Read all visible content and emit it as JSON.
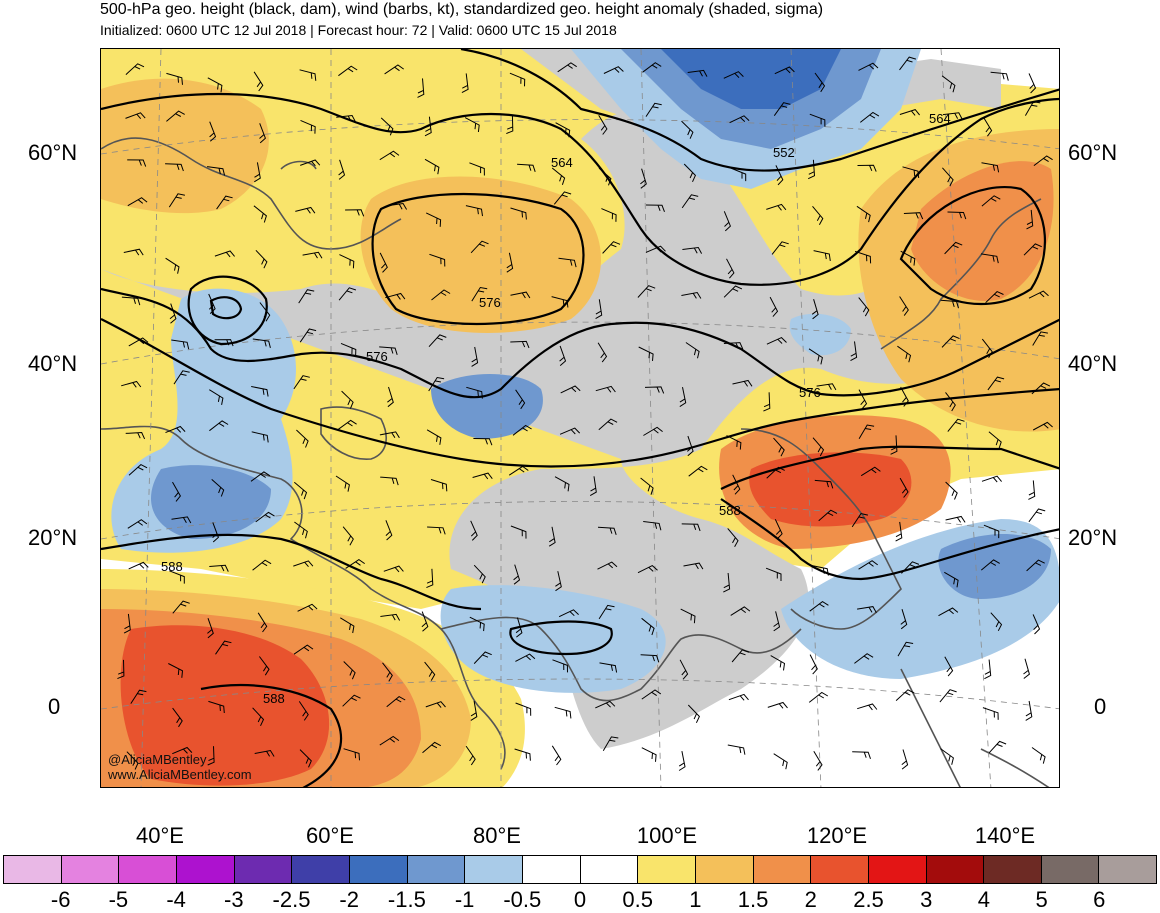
{
  "title": "500-hPa geo. height (black, dam), wind (barbs, kt), standardized geo. height anomaly (shaded, sigma)",
  "subtitle": "Initialized: 0600 UTC 12 Jul 2018 | Forecast hour: 72 | Valid: 0600 UTC 15 Jul 2018",
  "lat_labels": [
    "60°N",
    "40°N",
    "20°N",
    "0"
  ],
  "lon_labels": [
    "40°E",
    "60°E",
    "80°E",
    "100°E",
    "120°E",
    "140°E"
  ],
  "contour_labels": [
    "564",
    "564",
    "552",
    "576",
    "576",
    "576",
    "588",
    "588",
    "588"
  ],
  "watermark": {
    "handle": "@AliciaMBentley",
    "url": "www.AliciaMBentley.com"
  },
  "colorbar": {
    "colors": [
      "#e9b8e6",
      "#e482e0",
      "#d84fd6",
      "#ad12cf",
      "#6d2bb0",
      "#3f3fa8",
      "#3c6ebd",
      "#6f98cf",
      "#a9cbe8",
      "#ffffff",
      "#ffffff",
      "#f9e46b",
      "#f4c05a",
      "#f0904a",
      "#e8532e",
      "#e31515",
      "#a30c0c",
      "#6d2a24",
      "#786a66",
      "#a89d9b"
    ],
    "ticks": [
      "-6",
      "-5",
      "-4",
      "-3",
      "-2.5",
      "-2",
      "-1.5",
      "-1",
      "-0.5",
      "0",
      "0.5",
      "1",
      "1.5",
      "2",
      "2.5",
      "3",
      "4",
      "5",
      "6"
    ]
  },
  "map_colors": {
    "gray": "#cdcdcd",
    "yellow": "#f9e46b",
    "light_orange": "#f4c05a",
    "orange": "#f0904a",
    "red_orange": "#e8532e",
    "red": "#e31515",
    "light_blue": "#a9cbe8",
    "blue": "#6f98cf",
    "mid_blue": "#3c6ebd",
    "coast": "#555555"
  }
}
